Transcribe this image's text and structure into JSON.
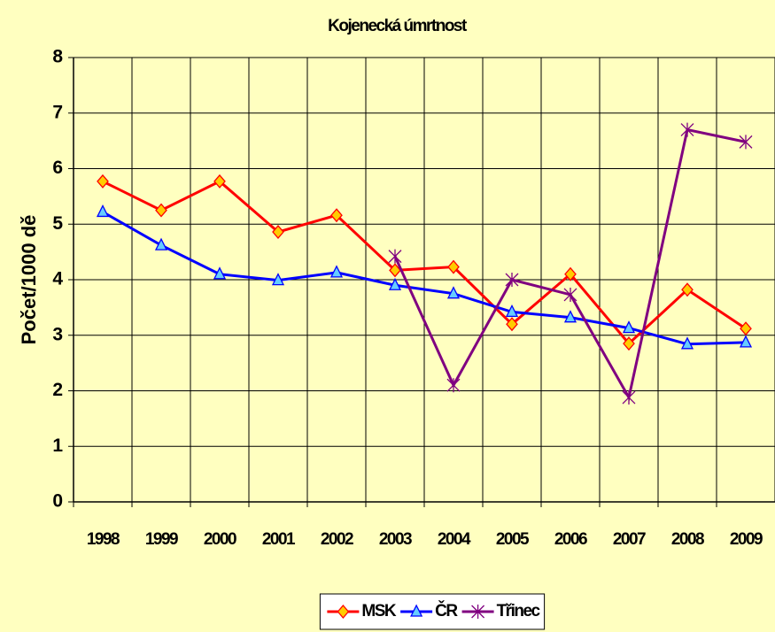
{
  "chart_data": {
    "type": "line",
    "title": "Kojenecká úmrtnost",
    "y_label": "Počet/1000 dě",
    "categories": [
      "1998",
      "1999",
      "2000",
      "2001",
      "2002",
      "2003",
      "2004",
      "2005",
      "2006",
      "2007",
      "2008",
      "2009"
    ],
    "series": [
      {
        "name": "MSK",
        "color": "#ff0000",
        "marker": "diamond",
        "marker_fill": "#ffcc00",
        "values": [
          5.77,
          5.25,
          5.77,
          4.86,
          5.16,
          4.17,
          4.23,
          3.2,
          4.1,
          2.85,
          3.82,
          3.12
        ]
      },
      {
        "name": "ČR",
        "color": "#0000ff",
        "marker": "triangle",
        "marker_fill": "#66ccff",
        "values": [
          5.22,
          4.62,
          4.1,
          3.99,
          4.13,
          3.9,
          3.75,
          3.42,
          3.32,
          3.13,
          2.84,
          2.87
        ]
      },
      {
        "name": "Třinec",
        "color": "#800080",
        "marker": "star",
        "marker_fill": "none",
        "values": [
          null,
          null,
          null,
          null,
          null,
          4.42,
          2.1,
          4.0,
          3.73,
          1.88,
          6.7,
          6.48
        ]
      }
    ],
    "ylim": [
      0,
      8
    ],
    "yticks": [
      0,
      1,
      2,
      3,
      4,
      5,
      6,
      7,
      8
    ],
    "grid": true,
    "legend": "bottom"
  }
}
